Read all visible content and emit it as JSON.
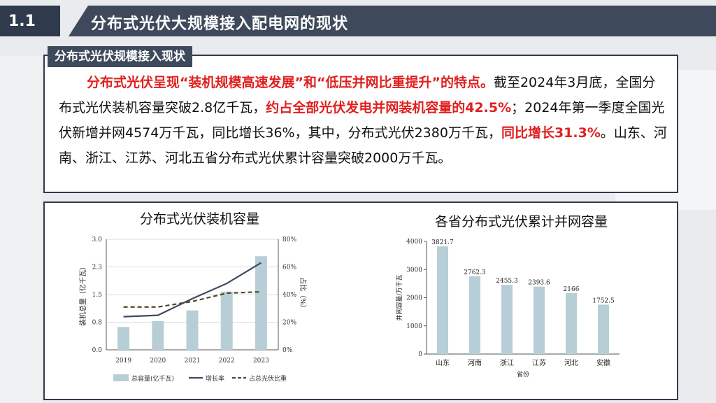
{
  "header": {
    "section_number": "1.1",
    "title": "分布式光伏大规模接入配电网的现状"
  },
  "text_section": {
    "tag": "分布式光伏规模接入现状",
    "segments": [
      {
        "text": "分布式光伏呈现“装机规模高速发展”和“低压并网比重提升”的特点。",
        "highlight": true
      },
      {
        "text": "截至2024年3月底，全国分布式光伏装机容量突破2.8亿千瓦，",
        "highlight": false
      },
      {
        "text": "约占全部光伏发电并网装机容量的42.5%",
        "highlight": true
      },
      {
        "text": "；2024年第一季度全国光伏新增并网4574万千瓦，同比增长36%，其中，分布式光伏2380万千瓦，",
        "highlight": false
      },
      {
        "text": "同比增长31.3%",
        "highlight": true
      },
      {
        "text": "。山东、河南、浙江、江苏、河北五省分布式光伏累计容量突破2000万千瓦。",
        "highlight": false
      }
    ]
  },
  "colors": {
    "bar": "#b8ced6",
    "line_growth": "#3d4a60",
    "line_share": "#4f4a2a",
    "highlight": "#e0201f"
  },
  "chart_data": [
    {
      "type": "bar",
      "title": "分布式光伏装机容量",
      "categories": [
        "2019",
        "2020",
        "2021",
        "2022",
        "2023"
      ],
      "ylabel": "装机总量（亿千瓦）",
      "ylabel2": "占比（%）",
      "ylim": [
        0,
        3.0
      ],
      "yticks": [
        "0.0",
        "0.8",
        "1.5",
        "2.3",
        "3.0"
      ],
      "ylim2": [
        0,
        80
      ],
      "yticks2": [
        "0%",
        "20%",
        "40%",
        "60%",
        "80%"
      ],
      "series": [
        {
          "name": "总容量(亿千瓦)",
          "kind": "bar",
          "axis": "left",
          "values": [
            0.62,
            0.78,
            1.07,
            1.58,
            2.54
          ]
        },
        {
          "name": "增长率",
          "kind": "line",
          "axis": "right",
          "style": "solid",
          "values": [
            24,
            25,
            37,
            48,
            63
          ]
        },
        {
          "name": "占总光伏比重",
          "kind": "line",
          "axis": "right",
          "style": "dashed",
          "values": [
            31,
            31,
            35,
            41,
            42
          ]
        }
      ],
      "legend": "bottom"
    },
    {
      "type": "bar",
      "title": "各省分布式光伏累计并网容量",
      "categories": [
        "山东",
        "河南",
        "浙江",
        "江苏",
        "河北",
        "安徽"
      ],
      "values": [
        3821.7,
        2762.3,
        2455.3,
        2393.6,
        2166,
        1752.5
      ],
      "labels": [
        "3821.7",
        "2762.3",
        "2455.3",
        "2393.6",
        "2166",
        "1752.5"
      ],
      "xlabel": "省份",
      "ylabel": "并网容量/万千瓦",
      "ylim": [
        0,
        4000
      ],
      "yticks": [
        "0",
        "1000",
        "2000",
        "3000",
        "4000"
      ]
    }
  ]
}
